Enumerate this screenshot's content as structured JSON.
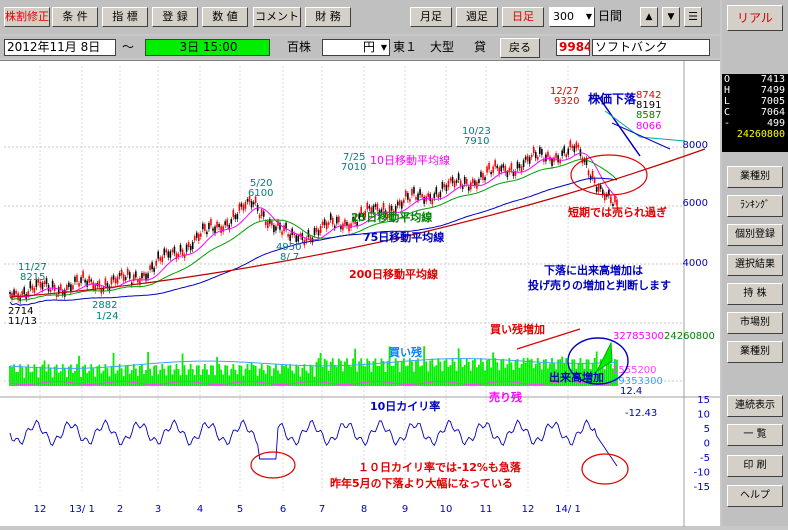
{
  "toolbar": {
    "buttons": [
      {
        "label": "株割修正",
        "style": "red"
      },
      {
        "label": "条 件",
        "style": ""
      },
      {
        "label": "指 標",
        "style": ""
      },
      {
        "label": "登 録",
        "style": ""
      },
      {
        "label": "数 値",
        "style": ""
      },
      {
        "label": "コメント",
        "style": ""
      },
      {
        "label": "財 務",
        "style": ""
      }
    ],
    "period_buttons": [
      {
        "label": "月足",
        "style": ""
      },
      {
        "label": "週足",
        "style": ""
      },
      {
        "label": "日足",
        "style": "red"
      }
    ],
    "span_value": "300",
    "span_unit": "日間",
    "up_arrow": "▲",
    "down_arrow": "▼",
    "menu": "☰"
  },
  "infobar": {
    "date_from": "2012年11月 8日",
    "tilde": "〜",
    "elapsed": "3日 15:00",
    "unit": "百株",
    "currency": "円",
    "market": "東１",
    "size": "大型",
    "loan": "貸",
    "back_label": "戻る",
    "code": "9984",
    "name": "ソフトバンク"
  },
  "sidebar": {
    "real_label": "リアル",
    "ohlc": [
      {
        "k": "O",
        "v": "7413"
      },
      {
        "k": "H",
        "v": "7499"
      },
      {
        "k": "L",
        "v": "7005"
      },
      {
        "k": "C",
        "v": "7064"
      },
      {
        "k": "-",
        "v": "499"
      },
      {
        "k": "",
        "v": "24260800"
      }
    ],
    "buttons": [
      "業種別",
      "ﾗﾝｷﾝｸﾞ",
      "個別登録",
      "選択結果",
      "持 株",
      "市場別",
      "業種別",
      "連続表示",
      "一 覧",
      "印 刷",
      "ヘルプ"
    ]
  },
  "chart": {
    "price_axis": [
      "8000",
      "6000",
      "4000"
    ],
    "kairi_axis": [
      "15",
      "10",
      "5",
      "0",
      "-5",
      "-10",
      "-15"
    ],
    "months": [
      "12",
      "13/ 1",
      "2",
      "3",
      "4",
      "5",
      "6",
      "7",
      "8",
      "9",
      "10",
      "11",
      "12",
      "14/ 1"
    ],
    "annotations": {
      "p_1127": "11/27",
      "p_8215": "8215",
      "p_2714": "2714",
      "p_1113": "11/13",
      "p_2882": "2882",
      "p_124": "1/24",
      "p_520": "5/20",
      "p_6100": "6100",
      "p_4950": "4950",
      "p_87": "8/ 7",
      "p_725": "7/25",
      "p_7010": "7010",
      "p_1023": "10/23",
      "p_7910": "7910",
      "p_1227": "12/27",
      "p_9320": "9320",
      "p_8742": "8742",
      "p_8191": "8191",
      "p_8587": "8587",
      "p_8066": "8066",
      "ma10": "10日移動平均線",
      "ma25": "25日移動平均線",
      "ma75": "75日移動平均線",
      "ma200": "200日移動平均線",
      "price_down": "株価下落",
      "oversold": "短期では売られ過ぎ",
      "vol_note1": "下落に出来高増加は",
      "vol_note2": "投げ売りの増加と判断します",
      "buy_remain": "買い残",
      "buy_increase": "買い残増加",
      "sell_remain": "売り残",
      "vol_increase": "出来高増加",
      "v1": "32785300",
      "v2": "24260800",
      "v3": "1555200",
      "v4": "19353300",
      "v5": "12.4",
      "kairi_title": "10日カイリ率",
      "kairi_val": "-12.43",
      "kairi_note1": "１０日カイリ率では-12%も急落",
      "kairi_note2": "昨年5月の下落より大幅になっている"
    }
  },
  "colors": {
    "candle_up": "#ff0000",
    "candle_down": "#000000",
    "ma10": "#ff00ff",
    "ma25": "#00a000",
    "ma75": "#0000c0",
    "ma200": "#c00000",
    "volume": "#00ee00"
  }
}
